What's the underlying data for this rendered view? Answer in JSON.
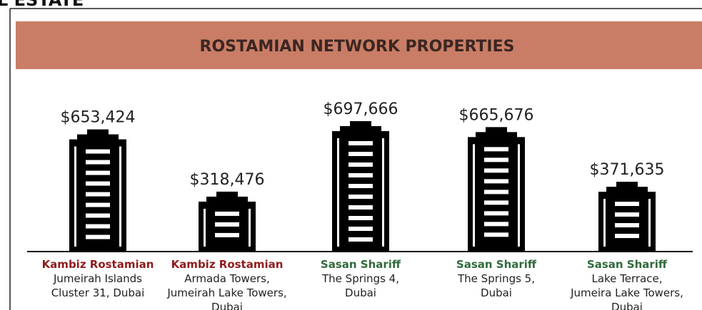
{
  "header_fragment": "L ESTATE",
  "chart_data": {
    "type": "pictogram-bar",
    "title": "ROSTAMIAN NETWORK PROPERTIES",
    "agents": [
      "Kambiz Rostamian",
      "Kambiz Rostamian",
      "Sasan Shariff",
      "Sasan Shariff",
      "Sasan Shariff"
    ],
    "categories": [
      [
        "Jumeirah Islands",
        "Cluster 31, Dubai"
      ],
      [
        "Armada Towers,",
        "Jumeirah Lake Towers,",
        "Dubai"
      ],
      [
        "The Springs 4,",
        "Dubai"
      ],
      [
        "The Springs 5,",
        "Dubai"
      ],
      [
        "Lake Terrace,",
        "Jumeira Lake Towers,",
        "Dubai"
      ]
    ],
    "values": [
      653424,
      318476,
      697666,
      665676,
      371635
    ],
    "value_labels": [
      "$653,424",
      "$318,476",
      "$697,666",
      "$665,676",
      "$371,635"
    ],
    "agent_colors": {
      "Kambiz Rostamian": "#8e1c1c",
      "Sasan Shariff": "#2f6a3b"
    },
    "color": "#000000",
    "banner_color": "#c97d66"
  }
}
